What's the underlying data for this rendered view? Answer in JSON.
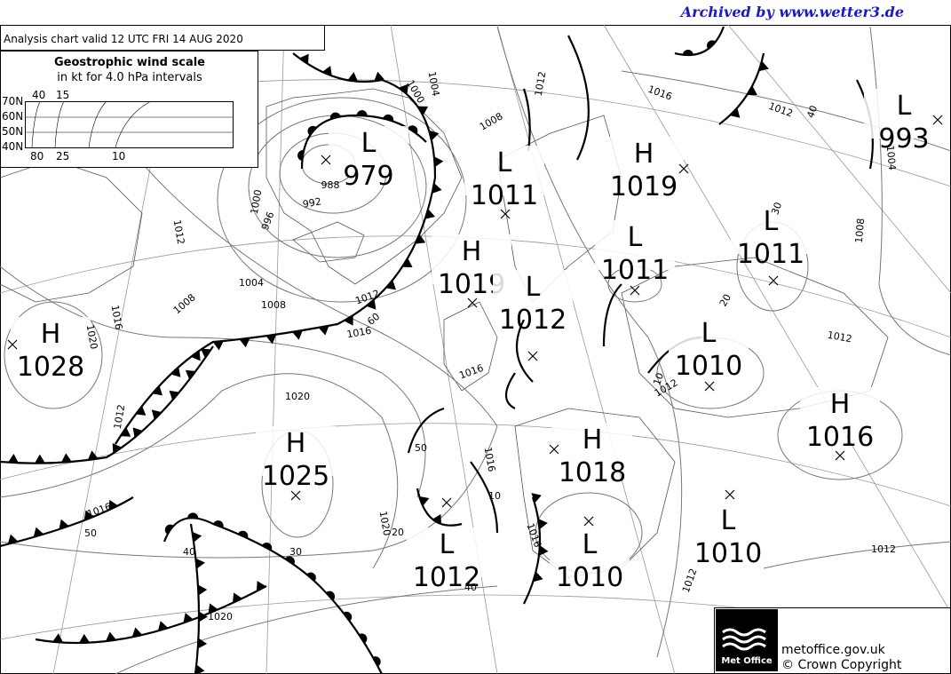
{
  "header": {
    "archive": "Archived by www.wetter3.de",
    "title": "Analysis chart  valid 12 UTC FRI 14  AUG 2020"
  },
  "wind_scale": {
    "title": "Geostrophic wind scale",
    "subtitle": "in kt for 4.0 hPa intervals",
    "latitudes": [
      "70N",
      "60N",
      "50N",
      "40N"
    ],
    "top_labels": [
      "40",
      "15"
    ],
    "bottom_labels": [
      "80",
      "25",
      "10"
    ]
  },
  "centers": [
    {
      "kind": "L",
      "value": 979
    },
    {
      "kind": "L",
      "value": 1011
    },
    {
      "kind": "H",
      "value": 1019
    },
    {
      "kind": "H",
      "value": 1019
    },
    {
      "kind": "L",
      "value": 1012
    },
    {
      "kind": "L",
      "value": 1011
    },
    {
      "kind": "L",
      "value": 1011
    },
    {
      "kind": "L",
      "value": 993
    },
    {
      "kind": "H",
      "value": 1028
    },
    {
      "kind": "L",
      "value": 1010
    },
    {
      "kind": "H",
      "value": 1016
    },
    {
      "kind": "H",
      "value": 1025
    },
    {
      "kind": "H",
      "value": 1018
    },
    {
      "kind": "L",
      "value": 1012
    },
    {
      "kind": "L",
      "value": 1010
    },
    {
      "kind": "L",
      "value": 1010
    }
  ],
  "isobar_labels": [
    "1004",
    "1000",
    "1008",
    "1012",
    "1016",
    "1012",
    "40",
    "1004",
    "1008",
    "20",
    "1012",
    "1012",
    "10",
    "988",
    "992",
    "996",
    "1000",
    "1012",
    "1004",
    "1008",
    "1008",
    "1016",
    "1020",
    "1012",
    "1016",
    "60",
    "1016",
    "1020",
    "1012",
    "50",
    "1016",
    "1016",
    "50",
    "1020",
    "20",
    "10",
    "1016",
    "40",
    "30",
    "40",
    "1020",
    "1012",
    "1012",
    "30"
  ],
  "footer": {
    "logo": "Met Office",
    "site": "metoffice.gov.uk",
    "copyright": "© Crown Copyright"
  }
}
